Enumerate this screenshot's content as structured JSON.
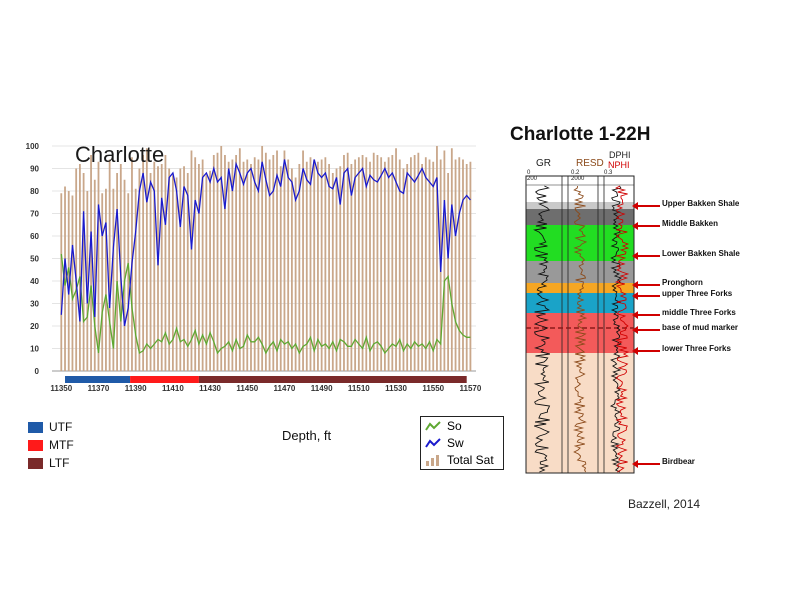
{
  "chart_data": {
    "type": "line",
    "title": "Charlotte",
    "xlabel": "Depth, ft",
    "ylabel": "",
    "ylim": [
      0,
      100
    ],
    "yticks": [
      0,
      10,
      20,
      30,
      40,
      50,
      60,
      70,
      80,
      90,
      100
    ],
    "xlim": [
      11345,
      11573
    ],
    "xticks": [
      11350,
      11370,
      11390,
      11410,
      11430,
      11450,
      11470,
      11490,
      11510,
      11530,
      11550,
      11570
    ],
    "grid": true,
    "legend_position": "bottom-right",
    "x": [
      11350,
      11352,
      11354,
      11356,
      11358,
      11360,
      11362,
      11364,
      11366,
      11368,
      11370,
      11372,
      11374,
      11376,
      11378,
      11380,
      11382,
      11384,
      11386,
      11388,
      11390,
      11392,
      11394,
      11396,
      11398,
      11400,
      11402,
      11404,
      11406,
      11408,
      11410,
      11412,
      11414,
      11416,
      11418,
      11420,
      11422,
      11424,
      11426,
      11428,
      11430,
      11432,
      11434,
      11436,
      11438,
      11440,
      11442,
      11444,
      11446,
      11448,
      11450,
      11452,
      11454,
      11456,
      11458,
      11460,
      11462,
      11464,
      11466,
      11468,
      11470,
      11472,
      11474,
      11476,
      11478,
      11480,
      11482,
      11484,
      11486,
      11488,
      11490,
      11492,
      11494,
      11496,
      11498,
      11500,
      11502,
      11504,
      11506,
      11508,
      11510,
      11512,
      11514,
      11516,
      11518,
      11520,
      11522,
      11524,
      11526,
      11528,
      11530,
      11532,
      11534,
      11536,
      11538,
      11540,
      11542,
      11544,
      11546,
      11548,
      11550,
      11552,
      11554,
      11556,
      11558,
      11560,
      11562,
      11564,
      11566,
      11568,
      11570
    ],
    "series": [
      {
        "name": "So",
        "color": "#5fa832",
        "values": [
          52,
          38,
          46,
          32,
          36,
          42,
          22,
          24,
          38,
          20,
          8,
          26,
          34,
          22,
          10,
          40,
          22,
          40,
          48,
          28,
          16,
          8,
          9,
          12,
          10,
          12,
          14,
          13,
          17,
          12,
          14,
          19,
          13,
          14,
          11,
          14,
          18,
          12,
          16,
          12,
          17,
          13,
          8,
          10,
          11,
          13,
          9,
          14,
          10,
          11,
          16,
          13,
          13,
          15,
          12,
          8,
          11,
          13,
          9,
          14,
          12,
          13,
          10,
          12,
          8,
          11,
          12,
          15,
          9,
          14,
          11,
          12,
          10,
          13,
          9,
          14,
          13,
          11,
          11,
          14,
          12,
          10,
          15,
          9,
          12,
          13,
          11,
          8,
          10,
          12,
          11,
          14,
          9,
          12,
          10,
          13,
          11,
          12,
          10,
          13,
          9,
          14,
          12,
          40,
          42,
          30,
          22,
          18,
          16,
          15,
          15
        ]
      },
      {
        "name": "Sw",
        "color": "#1a1acc",
        "values": [
          25,
          50,
          34,
          56,
          40,
          22,
          71,
          30,
          62,
          24,
          74,
          60,
          66,
          28,
          55,
          72,
          42,
          20,
          28,
          48,
          62,
          80,
          88,
          75,
          84,
          80,
          47,
          77,
          65,
          86,
          88,
          80,
          64,
          82,
          78,
          54,
          76,
          70,
          86,
          88,
          84,
          90,
          84,
          86,
          72,
          90,
          80,
          92,
          88,
          83,
          88,
          90,
          84,
          80,
          93,
          85,
          78,
          80,
          87,
          82,
          94,
          86,
          84,
          76,
          80,
          90,
          85,
          83,
          94,
          88,
          86,
          88,
          82,
          81,
          86,
          74,
          88,
          90,
          78,
          86,
          88,
          90,
          82,
          87,
          85,
          84,
          87,
          90,
          86,
          88,
          84,
          80,
          79,
          88,
          86,
          84,
          87,
          90,
          86,
          84,
          82,
          86,
          44,
          76,
          50,
          74,
          60,
          70,
          76,
          78,
          76
        ]
      },
      {
        "name": "Total Sat",
        "color": "#c9a78a",
        "values": [
          79,
          82,
          80,
          78,
          90,
          92,
          88,
          80,
          96,
          85,
          93,
          79,
          81,
          94,
          81,
          88,
          92,
          85,
          79,
          95,
          81,
          90,
          96,
          99,
          88,
          93,
          91,
          92,
          96,
          90,
          87,
          86,
          90,
          91,
          88,
          98,
          95,
          92,
          94,
          87,
          89,
          96,
          97,
          100,
          96,
          93,
          94,
          96,
          99,
          93,
          94,
          92,
          95,
          94,
          100,
          97,
          94,
          96,
          98,
          91,
          98,
          94,
          90,
          86,
          92,
          98,
          93,
          95,
          94,
          93,
          94,
          95,
          92,
          88,
          90,
          91,
          96,
          97,
          92,
          94,
          95,
          96,
          95,
          93,
          97,
          96,
          95,
          93,
          95,
          96,
          99,
          94,
          90,
          92,
          95,
          96,
          97,
          92,
          95,
          94,
          93,
          100,
          94,
          98,
          88,
          99,
          94,
          95,
          94,
          92,
          93
        ]
      }
    ],
    "zones": [
      {
        "name": "UTF",
        "color": "#1f5aa8",
        "from": 11352,
        "to": 11387
      },
      {
        "name": "MTF",
        "color": "#ff1a1a",
        "from": 11387,
        "to": 11424
      },
      {
        "name": "LTF",
        "color": "#7a2a2a",
        "from": 11424,
        "to": 11568
      }
    ]
  },
  "legend": {
    "so": "So",
    "sw": "Sw",
    "total_sat": "Total Sat",
    "utf": "UTF",
    "mtf": "MTF",
    "ltf": "LTF"
  },
  "well_log": {
    "title": "Charlotte 1-22H",
    "tracks": {
      "gr": "GR",
      "resd": "RESD",
      "dphi": "DPHI",
      "nphi": "NPHI"
    },
    "scales": {
      "gr_left": "0",
      "gr_min": "200",
      "resd_left": "0.2",
      "resd_right": "2000",
      "nphi_left": "0.3"
    },
    "zones": [
      {
        "label": "Upper Bakken Shale",
        "color": "#c9c9c9"
      },
      {
        "label": "Middle Bakken",
        "color": "#6e6e6e"
      },
      {
        "label": "Lower Bakken Shale",
        "color": "#22dd22"
      },
      {
        "label": "Pronghorn",
        "color": "#999999"
      },
      {
        "label": "upper Three Forks",
        "color": "#f5a623"
      },
      {
        "label": "middle Three Forks",
        "color": "#1aa3c8"
      },
      {
        "label": "base of mud marker",
        "color": "#f35a5a"
      },
      {
        "label": "lower Three Forks",
        "color": "#f8dcc6"
      },
      {
        "label": "Birdbear",
        "color": "#f8dcc6"
      }
    ]
  },
  "citation": "Bazzell, 2014"
}
